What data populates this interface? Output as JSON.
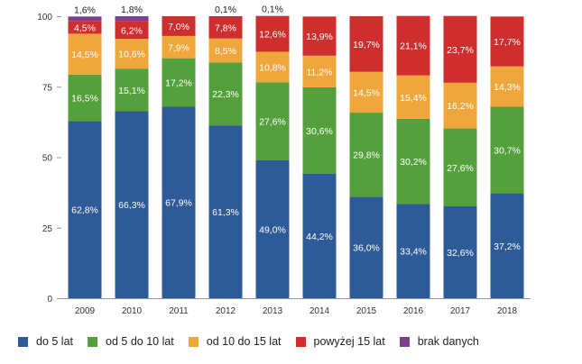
{
  "chart_data": {
    "type": "bar",
    "stacked": true,
    "categories": [
      "2009",
      "2010",
      "2011",
      "2012",
      "2013",
      "2014",
      "2015",
      "2016",
      "2017",
      "2018"
    ],
    "ylim": [
      0,
      100
    ],
    "yticks": [
      "0",
      "25",
      "50",
      "75",
      "100"
    ],
    "title": "",
    "xlabel": "",
    "ylabel": "",
    "grid": false,
    "legend_position": "bottom",
    "series": [
      {
        "name": "do 5 lat",
        "color": "#2e5b97",
        "values": [
          62.8,
          66.3,
          67.9,
          61.3,
          49.0,
          44.2,
          36.0,
          33.4,
          32.6,
          37.2
        ],
        "labels": [
          "62,8%",
          "66,3%",
          "67,9%",
          "61,3%",
          "49,0%",
          "44,2%",
          "36,0%",
          "33,4%",
          "32,6%",
          "37,2%"
        ]
      },
      {
        "name": "od 5 do 10 lat",
        "color": "#54a03c",
        "values": [
          16.5,
          15.1,
          17.2,
          22.3,
          27.6,
          30.6,
          29.8,
          30.2,
          27.6,
          30.7
        ],
        "labels": [
          "16,5%",
          "15,1%",
          "17,2%",
          "22,3%",
          "27,6%",
          "30,6%",
          "29,8%",
          "30,2%",
          "27,6%",
          "30,7%"
        ]
      },
      {
        "name": "od 10 do 15 lat",
        "color": "#efa73c",
        "values": [
          14.5,
          10.6,
          7.9,
          8.5,
          10.8,
          11.2,
          14.5,
          15.4,
          16.2,
          14.3
        ],
        "labels": [
          "14,5%",
          "10,6%",
          "7,9%",
          "8,5%",
          "10,8%",
          "11,2%",
          "14,5%",
          "15,4%",
          "16,2%",
          "14,3%"
        ]
      },
      {
        "name": "powyżej 15 lat",
        "color": "#cf2e2e",
        "values": [
          4.5,
          6.2,
          7.0,
          7.8,
          12.6,
          13.9,
          19.7,
          21.1,
          23.7,
          17.7
        ],
        "labels": [
          "4,5%",
          "6,2%",
          "7,0%",
          "7,8%",
          "12,6%",
          "13,9%",
          "19,7%",
          "21,1%",
          "23,7%",
          "17,7%"
        ]
      },
      {
        "name": "brak danych",
        "color": "#7e3f8c",
        "values": [
          1.6,
          1.8,
          0,
          0.1,
          0.1,
          0,
          0,
          0,
          0,
          0
        ],
        "labels": [
          "1,6%",
          "1,8%",
          "",
          "0,1%",
          "0,1%",
          "",
          "",
          "",
          "",
          ""
        ]
      }
    ]
  }
}
